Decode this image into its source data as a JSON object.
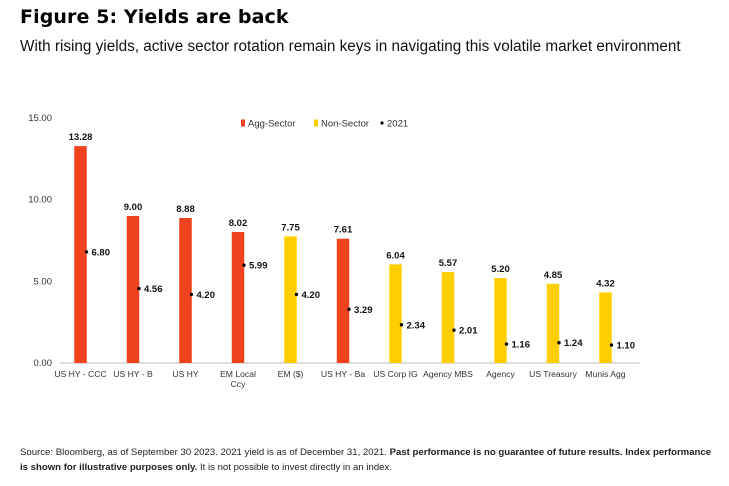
{
  "title": "Figure 5: Yields are back",
  "subtitle": "With rising yields, active sector rotation remain keys in navigating this volatile market environment",
  "footnote": {
    "part1": "Source: Bloomberg, as of September 30 2023. 2021 yield is as of December 31, 2021. ",
    "bold": "Past performance is no guarantee of future results. Index performance is shown for illustrative purposes only.",
    "part2": " It is not possible to invest directly in an index."
  },
  "chart_data": {
    "type": "bar",
    "categories": [
      "US HY - CCC",
      "US HY - B",
      "US HY",
      "EM Local Ccy",
      "EM ($)",
      "US HY - Ba",
      "US Corp IG",
      "Agency MBS",
      "Agency",
      "US Treasury",
      "Munis Agg"
    ],
    "category_lines": [
      [
        "US HY - CCC"
      ],
      [
        "US HY - B"
      ],
      [
        "US HY"
      ],
      [
        "EM Local",
        "Ccy"
      ],
      [
        "EM ($)"
      ],
      [
        "US HY - Ba"
      ],
      [
        "US Corp IG"
      ],
      [
        "Agency MBS"
      ],
      [
        "Agency"
      ],
      [
        "US Treasury"
      ],
      [
        "Munis Agg"
      ]
    ],
    "values": [
      13.28,
      9.0,
      8.88,
      8.02,
      7.75,
      7.61,
      6.04,
      5.57,
      5.2,
      4.85,
      4.32
    ],
    "value_labels": [
      "13.28",
      "9.00",
      "8.88",
      "8.02",
      "7.75",
      "7.61",
      "6.04",
      "5.57",
      "5.20",
      "4.85",
      "4.32"
    ],
    "bar_group": [
      "Agg-Sector",
      "Agg-Sector",
      "Agg-Sector",
      "Agg-Sector",
      "Non-Sector",
      "Agg-Sector",
      "Non-Sector",
      "Non-Sector",
      "Non-Sector",
      "Non-Sector",
      "Non-Sector"
    ],
    "points_2021": [
      6.8,
      4.56,
      4.2,
      5.99,
      4.2,
      3.29,
      2.34,
      2.01,
      1.16,
      1.24,
      1.1
    ],
    "point_labels": [
      "6.80",
      "4.56",
      "4.20",
      "5.99",
      "4.20",
      "3.29",
      "2.34",
      "2.01",
      "1.16",
      "1.24",
      "1.10"
    ],
    "legend": [
      {
        "name": "Agg-Sector",
        "color": "#f0421c",
        "kind": "square"
      },
      {
        "name": "Non-Sector",
        "color": "#ffce00",
        "kind": "square"
      },
      {
        "name": "2021",
        "color": "#000000",
        "kind": "dot"
      }
    ],
    "ylim": [
      0,
      15
    ],
    "yticks": [
      0,
      5,
      10,
      15
    ],
    "ytick_labels": [
      "0.00",
      "5.00",
      "10.00",
      "15.00"
    ],
    "legend_position": "top-center",
    "grid": false,
    "colors": {
      "Agg-Sector": "#f0421c",
      "Non-Sector": "#ffce00",
      "2021": "#000000",
      "axis": "#bdbdbd"
    }
  }
}
